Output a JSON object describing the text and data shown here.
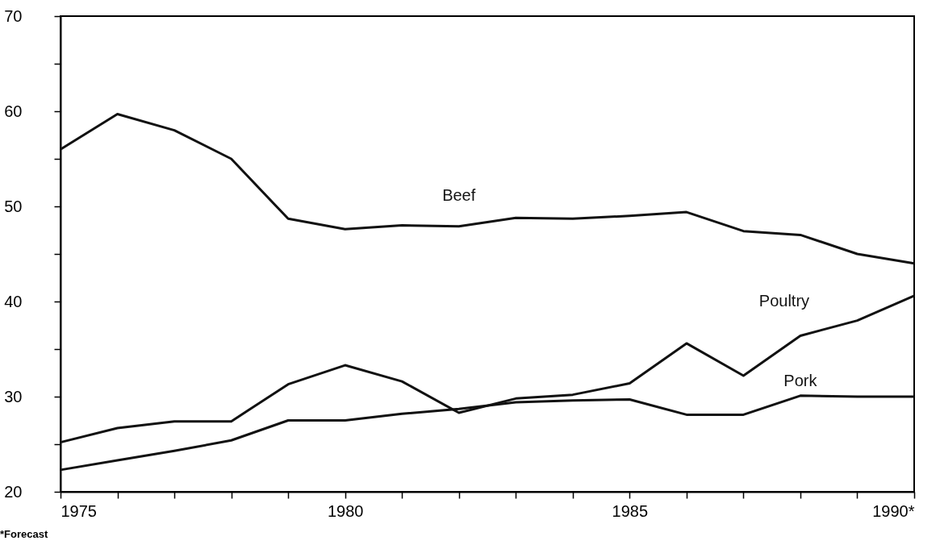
{
  "chart_data": {
    "type": "line",
    "x": [
      1975,
      1976,
      1977,
      1978,
      1979,
      1980,
      1981,
      1982,
      1983,
      1984,
      1985,
      1986,
      1987,
      1988,
      1989,
      1990
    ],
    "series": [
      {
        "name": "Beef",
        "color": "#111111",
        "values": [
          56,
          59.7,
          58,
          55,
          48.7,
          47.6,
          48,
          47.9,
          48.8,
          48.7,
          49,
          49.4,
          47.4,
          47,
          45,
          44
        ]
      },
      {
        "name": "Poultry",
        "color": "#111111",
        "values": [
          25.2,
          26.7,
          27.4,
          27.4,
          31.3,
          33.3,
          31.6,
          28.3,
          29.8,
          30.2,
          31.4,
          35.6,
          32.2,
          36.4,
          38,
          40.6
        ]
      },
      {
        "name": "Pork",
        "color": "#111111",
        "values": [
          22.3,
          23.3,
          24.3,
          25.4,
          27.5,
          27.5,
          28.2,
          28.7,
          29.4,
          29.6,
          29.7,
          28.1,
          28.1,
          30.1,
          30,
          30
        ]
      }
    ],
    "xlim": [
      1975,
      1990
    ],
    "xticks": [
      1975,
      {
        "value": 1976,
        "label": null
      },
      {
        "value": 1977,
        "label": null
      },
      {
        "value": 1978,
        "label": null
      },
      {
        "value": 1979,
        "label": null
      },
      1980,
      {
        "value": 1981,
        "label": null
      },
      {
        "value": 1982,
        "label": null
      },
      {
        "value": 1983,
        "label": null
      },
      {
        "value": 1984,
        "label": null
      },
      1985,
      {
        "value": 1986,
        "label": null
      },
      {
        "value": 1987,
        "label": null
      },
      {
        "value": 1988,
        "label": null
      },
      {
        "value": 1989,
        "label": null
      },
      {
        "value": 1990,
        "label": "1990*"
      }
    ],
    "ylim": [
      20,
      70
    ],
    "yticks": [
      20,
      {
        "value": 25,
        "label": null
      },
      30,
      {
        "value": 35,
        "label": null
      },
      40,
      {
        "value": 45,
        "label": null
      },
      50,
      {
        "value": 55,
        "label": null
      },
      60,
      {
        "value": 65,
        "label": null
      },
      70
    ],
    "annotations": [
      "*Forecast"
    ],
    "grid": false,
    "marker": "none",
    "line_style": "solid"
  }
}
